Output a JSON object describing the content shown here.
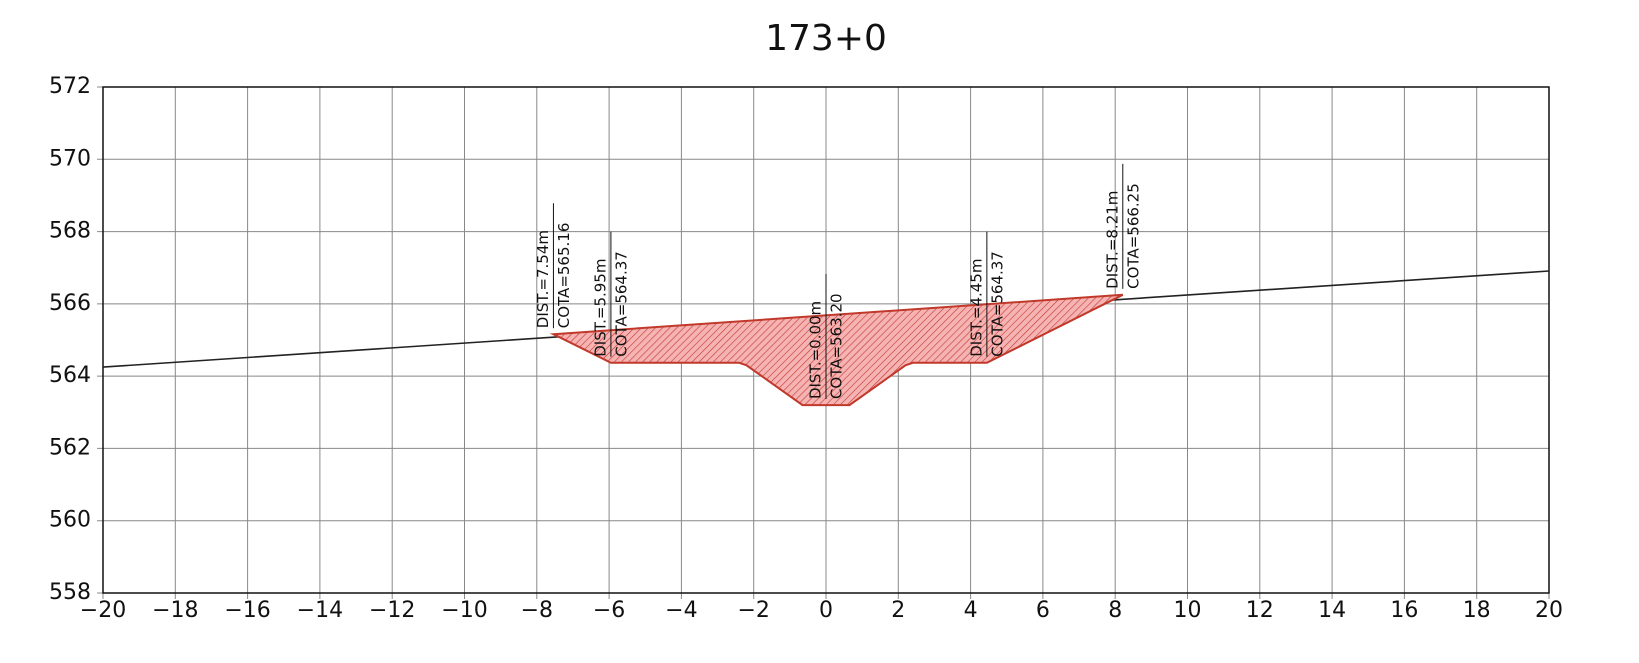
{
  "chart_data": {
    "type": "cross_section",
    "title": "173+0",
    "xlim": [
      -20,
      20
    ],
    "ylim": [
      558,
      572
    ],
    "xticks": [
      {
        "value": -20,
        "label": "−20"
      },
      {
        "value": -18,
        "label": "−18"
      },
      {
        "value": -16,
        "label": "−16"
      },
      {
        "value": -14,
        "label": "−14"
      },
      {
        "value": -12,
        "label": "−12"
      },
      {
        "value": -10,
        "label": "−10"
      },
      {
        "value": -8,
        "label": "−8"
      },
      {
        "value": -6,
        "label": "−6"
      },
      {
        "value": -4,
        "label": "−4"
      },
      {
        "value": -2,
        "label": "−2"
      },
      0,
      2,
      4,
      6,
      8,
      10,
      12,
      14,
      16,
      18,
      20
    ],
    "yticks": [
      558,
      560,
      562,
      564,
      566,
      568,
      570,
      572
    ],
    "grid": true,
    "series": [
      {
        "color": "#222222",
        "x": [
          -20,
          20
        ],
        "values": [
          564.25,
          566.91
        ]
      },
      {
        "color": "#c0392b",
        "fill": "#f4a6a6",
        "x": [
          -7.54,
          -5.95,
          -2.4,
          -2.2,
          -0.65,
          0.65,
          2.2,
          2.4,
          4.45,
          8.21
        ],
        "values": [
          565.16,
          564.37,
          564.37,
          564.3,
          563.2,
          563.2,
          564.3,
          564.37,
          564.37,
          566.25
        ]
      }
    ],
    "annotations": [
      {
        "x": -7.54,
        "y": 565.16,
        "dist": "DIST.=7.54m",
        "cota": "COTA=565.16"
      },
      {
        "x": -5.95,
        "y": 564.37,
        "dist": "DIST.=5.95m",
        "cota": "COTA=564.37"
      },
      {
        "x": 0,
        "y": 563.2,
        "dist": "DIST.=0.00m",
        "cota": "COTA=563.20"
      },
      {
        "x": 4.45,
        "y": 564.37,
        "dist": "DIST.=4.45m",
        "cota": "COTA=564.37"
      },
      {
        "x": 8.21,
        "y": 566.25,
        "dist": "DIST.=8.21m",
        "cota": "COTA=566.25"
      }
    ]
  }
}
